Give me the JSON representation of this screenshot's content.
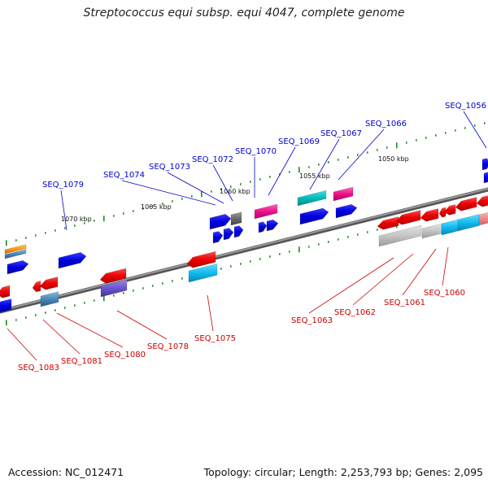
{
  "title": "Streptococcus equi subsp. equi 4047, complete genome",
  "accession": "Accession: NC_012471",
  "stats": "Topology: circular; Length: 2,253,793 bp; Genes: 2,095",
  "colors": {
    "backbone": "#7a7a7a",
    "tick_dot": "#1a8a1a",
    "label_forward": "#0000cc",
    "label_reverse": "#cc0000"
  },
  "scale_labels": [
    {
      "id": "1070",
      "text": "1070 kbp"
    },
    {
      "id": "1065",
      "text": "1065 kbp"
    },
    {
      "id": "1060",
      "text": "1060 kbp"
    },
    {
      "id": "1055",
      "text": "1055 kbp"
    },
    {
      "id": "1050",
      "text": "1050 kbp"
    }
  ],
  "features_forward": [
    {
      "id": "SEQ_1056",
      "label": "SEQ_1056"
    },
    {
      "id": "SEQ_1066",
      "label": "SEQ_1066"
    },
    {
      "id": "SEQ_1067",
      "label": "SEQ_1067"
    },
    {
      "id": "SEQ_1069",
      "label": "SEQ_1069"
    },
    {
      "id": "SEQ_1070",
      "label": "SEQ_1070"
    },
    {
      "id": "SEQ_1072",
      "label": "SEQ_1072"
    },
    {
      "id": "SEQ_1073",
      "label": "SEQ_1073"
    },
    {
      "id": "SEQ_1074",
      "label": "SEQ_1074"
    },
    {
      "id": "SEQ_1079",
      "label": "SEQ_1079"
    }
  ],
  "features_reverse": [
    {
      "id": "SEQ_1060",
      "label": "SEQ_1060"
    },
    {
      "id": "SEQ_1061",
      "label": "SEQ_1061"
    },
    {
      "id": "SEQ_1062",
      "label": "SEQ_1062"
    },
    {
      "id": "SEQ_1063",
      "label": "SEQ_1063"
    },
    {
      "id": "SEQ_1075",
      "label": "SEQ_1075"
    },
    {
      "id": "SEQ_1078",
      "label": "SEQ_1078"
    },
    {
      "id": "SEQ_1080",
      "label": "SEQ_1080"
    },
    {
      "id": "SEQ_1081",
      "label": "SEQ_1081"
    },
    {
      "id": "SEQ_1083",
      "label": "SEQ_1083"
    }
  ]
}
